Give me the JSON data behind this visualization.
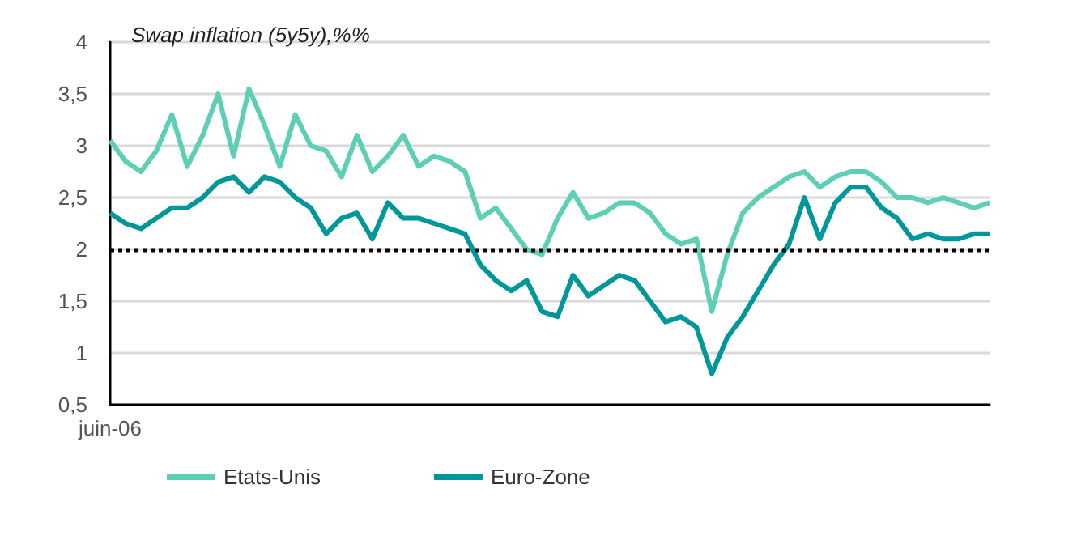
{
  "chart_data": {
    "type": "line",
    "title": "Swap inflation (5y5y),%%",
    "categories": [
      "juin-06",
      null,
      null,
      null,
      null,
      null,
      null,
      null,
      null,
      null,
      null,
      null,
      null,
      null,
      null,
      null,
      null,
      null,
      null,
      null,
      null,
      null,
      null,
      null,
      null,
      null,
      null,
      null,
      null,
      null,
      null,
      null,
      null,
      null,
      null,
      null,
      null,
      null,
      null,
      null,
      null,
      null,
      null,
      null,
      null,
      null,
      null,
      null,
      null,
      null,
      null,
      null,
      null,
      null,
      null,
      null,
      null,
      null
    ],
    "series": [
      {
        "name": "Etats-Unis",
        "color": "#5ccfb4",
        "values": [
          3.05,
          2.85,
          2.75,
          2.95,
          3.3,
          2.8,
          3.1,
          3.5,
          2.9,
          3.55,
          3.2,
          2.8,
          3.3,
          3.0,
          2.95,
          2.7,
          3.1,
          2.75,
          2.9,
          3.1,
          2.8,
          2.9,
          2.85,
          2.75,
          2.3,
          2.4,
          2.2,
          2.0,
          1.95,
          2.3,
          2.55,
          2.3,
          2.35,
          2.45,
          2.45,
          2.35,
          2.15,
          2.05,
          2.1,
          1.4,
          1.95,
          2.35,
          2.5,
          2.6,
          2.7,
          2.75,
          2.6,
          2.7,
          2.75,
          2.75,
          2.65,
          2.5,
          2.5,
          2.45,
          2.5,
          2.45,
          2.4,
          2.45
        ]
      },
      {
        "name": "Euro-Zone",
        "color": "#00979a",
        "values": [
          2.35,
          2.25,
          2.2,
          2.3,
          2.4,
          2.4,
          2.5,
          2.65,
          2.7,
          2.55,
          2.7,
          2.65,
          2.5,
          2.4,
          2.15,
          2.3,
          2.35,
          2.1,
          2.45,
          2.3,
          2.3,
          2.25,
          2.2,
          2.15,
          1.85,
          1.7,
          1.6,
          1.7,
          1.4,
          1.35,
          1.75,
          1.55,
          1.65,
          1.75,
          1.7,
          1.5,
          1.3,
          1.35,
          1.25,
          0.8,
          1.15,
          1.35,
          1.6,
          1.85,
          2.05,
          2.5,
          2.1,
          2.45,
          2.6,
          2.6,
          2.4,
          2.3,
          2.1,
          2.15,
          2.1,
          2.1,
          2.15,
          2.15
        ]
      }
    ],
    "ylim": [
      0.5,
      4
    ],
    "yticks": [
      {
        "value": 0.5,
        "label": "0,5"
      },
      1,
      {
        "value": 1.5,
        "label": "1,5"
      },
      2,
      {
        "value": 2.5,
        "label": "2,5"
      },
      3,
      {
        "value": 3.5,
        "label": "3,5"
      },
      4
    ],
    "ref_lines": [
      {
        "axis": "y",
        "value": 2,
        "color": "#000000",
        "line_style": "dotted"
      }
    ],
    "grid": "y",
    "legend": "bottom left",
    "marker": "none",
    "line_style": "solid"
  }
}
